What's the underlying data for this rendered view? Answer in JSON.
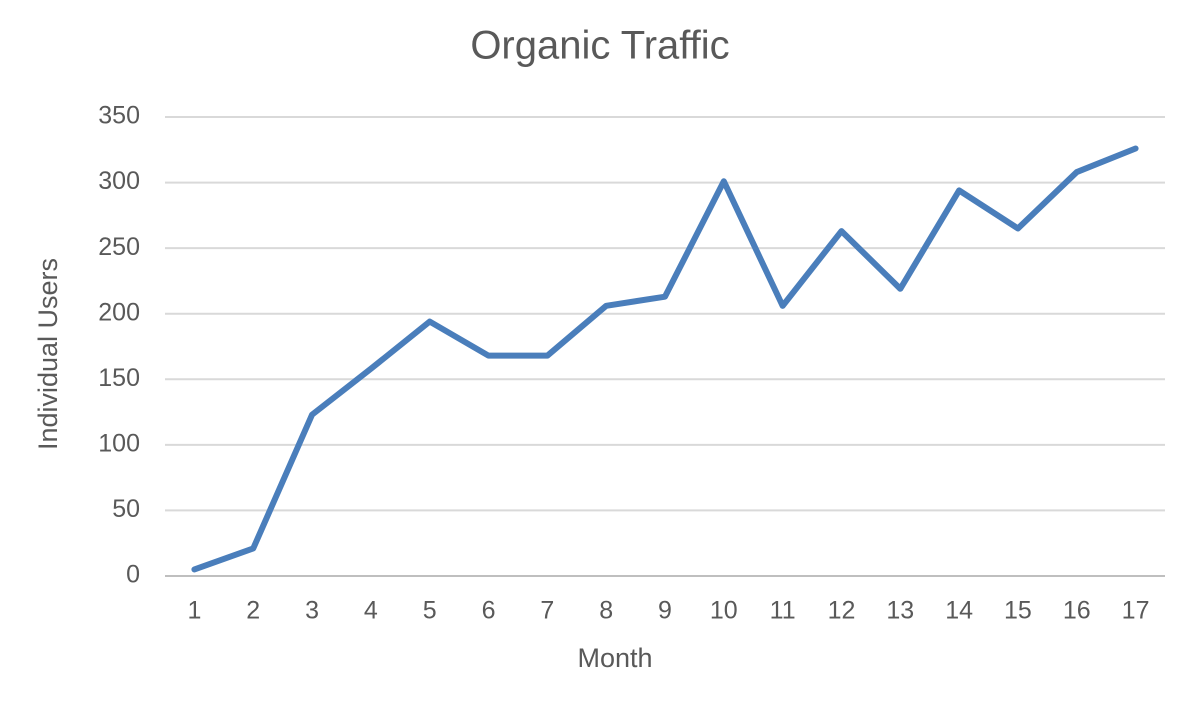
{
  "chart_data": {
    "type": "line",
    "title": "Organic Traffic",
    "x_label": "Month",
    "y_label": "Individual Users",
    "categories": [
      "1",
      "2",
      "3",
      "4",
      "5",
      "6",
      "7",
      "8",
      "9",
      "10",
      "11",
      "12",
      "13",
      "14",
      "15",
      "16",
      "17"
    ],
    "values": [
      5,
      21,
      123,
      158,
      194,
      168,
      168,
      206,
      213,
      301,
      206,
      263,
      219,
      294,
      265,
      308,
      326
    ],
    "color": "#4a7ebb",
    "ylim": [
      0,
      350
    ],
    "yticks": [
      0,
      50,
      100,
      150,
      200,
      250,
      300,
      350
    ],
    "grid": true
  }
}
